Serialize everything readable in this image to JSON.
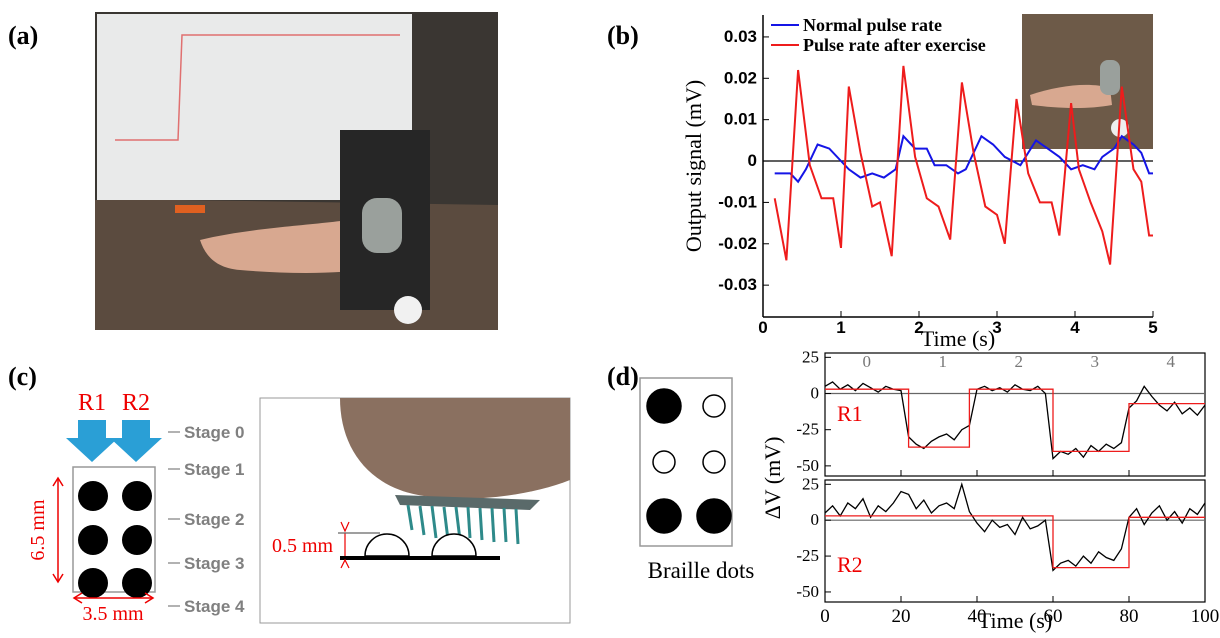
{
  "panels": {
    "a": "(a)",
    "b": "(b)",
    "c": "(c)",
    "d": "(d)"
  },
  "diagram_c": {
    "arrows": [
      "R1",
      "R2"
    ],
    "stages": [
      "Stage 0",
      "Stage 1",
      "Stage 2",
      "Stage 3",
      "Stage 4"
    ],
    "height": "6.5 mm",
    "width": "3.5 mm",
    "dot_height": "0.5 mm"
  },
  "braille": {
    "label": "Braille dots"
  },
  "chart_data": [
    {
      "type": "line",
      "ylabel": "Output signal (mV)",
      "xlabel": "Time (s)",
      "xlim": [
        0,
        5
      ],
      "ylim": [
        -0.0377,
        0.0353
      ],
      "xticks": [
        0,
        1,
        2,
        3,
        4,
        5
      ],
      "yticks": [
        -0.03,
        -0.02,
        -0.01,
        0,
        0.01,
        0.02,
        0.03
      ],
      "legend": "top-left",
      "series": [
        {
          "name": "Normal pulse rate",
          "color": "#1515e6",
          "x": [
            0.15,
            0.35,
            0.45,
            0.55,
            0.7,
            0.85,
            1.0,
            1.1,
            1.25,
            1.4,
            1.55,
            1.7,
            1.8,
            1.95,
            2.1,
            2.2,
            2.35,
            2.5,
            2.6,
            2.8,
            2.95,
            3.1,
            3.3,
            3.5,
            3.65,
            3.8,
            3.95,
            4.1,
            4.25,
            4.35,
            4.5,
            4.6,
            4.75,
            4.85,
            4.95,
            5.0
          ],
          "values": [
            -0.003,
            -0.003,
            -0.005,
            -0.002,
            0.004,
            0.003,
            0,
            -0.002,
            -0.004,
            -0.003,
            -0.004,
            -0.002,
            0.006,
            0.003,
            0.003,
            -0.001,
            -0.001,
            -0.003,
            -0.002,
            0.006,
            0.004,
            0.001,
            -0.001,
            0.005,
            0.003,
            0.001,
            -0.002,
            -0.001,
            -0.002,
            0.001,
            0.003,
            0.006,
            0.004,
            0.002,
            -0.003,
            -0.003
          ]
        },
        {
          "name": "Pulse rate after exercise",
          "color": "#ee1c1c",
          "x": [
            0.15,
            0.3,
            0.45,
            0.6,
            0.75,
            0.9,
            1.0,
            1.1,
            1.25,
            1.4,
            1.5,
            1.65,
            1.8,
            1.95,
            2.1,
            2.25,
            2.4,
            2.55,
            2.7,
            2.85,
            3.0,
            3.1,
            3.25,
            3.4,
            3.55,
            3.7,
            3.8,
            3.95,
            4.05,
            4.2,
            4.35,
            4.45,
            4.6,
            4.75,
            4.85,
            4.95,
            5.0
          ],
          "values": [
            -0.009,
            -0.024,
            0.022,
            -0.001,
            -0.009,
            -0.009,
            -0.021,
            0.018,
            0.002,
            -0.011,
            -0.01,
            -0.023,
            0.023,
            0.001,
            -0.009,
            -0.011,
            -0.019,
            0.019,
            0.002,
            -0.011,
            -0.013,
            -0.02,
            0.015,
            -0.003,
            -0.01,
            -0.01,
            -0.018,
            0.014,
            -0.002,
            -0.01,
            -0.017,
            -0.025,
            0.018,
            -0.002,
            -0.005,
            -0.018,
            -0.018
          ]
        }
      ]
    },
    {
      "type": "line",
      "label": "R1",
      "ylabel": "ΔV (mV)",
      "stage_labels": [
        "0",
        "1",
        "2",
        "3",
        "4"
      ],
      "xlim": [
        0,
        100
      ],
      "ylim": [
        -57,
        28
      ],
      "xticks": [
        0,
        20,
        40,
        60,
        80,
        100
      ],
      "yticks": [
        25,
        0,
        -25,
        -50
      ],
      "series": [
        {
          "color": "#000000",
          "x": [
            0,
            2,
            4,
            6,
            8,
            10,
            12,
            14,
            16,
            18,
            20,
            22,
            24,
            26,
            28,
            30,
            32,
            34,
            36,
            38,
            40,
            42,
            44,
            46,
            48,
            50,
            52,
            54,
            56,
            58,
            60,
            62,
            64,
            66,
            68,
            70,
            72,
            74,
            76,
            78,
            80,
            82,
            84,
            86,
            88,
            90,
            92,
            94,
            96,
            98,
            100
          ],
          "values": [
            5,
            8,
            3,
            6,
            2,
            7,
            4,
            1,
            5,
            3,
            2,
            -30,
            -35,
            -38,
            -33,
            -30,
            -28,
            -32,
            -25,
            -22,
            3,
            5,
            2,
            4,
            1,
            6,
            3,
            2,
            5,
            0,
            -45,
            -40,
            -42,
            -38,
            -44,
            -36,
            -40,
            -35,
            -38,
            -34,
            -10,
            -5,
            5,
            -2,
            -8,
            -12,
            -6,
            -14,
            -10,
            -15,
            -8
          ]
        },
        {
          "color": "#ee1c1c",
          "x": [
            0,
            22,
            22,
            38,
            38,
            60,
            60,
            80,
            80,
            100
          ],
          "values": [
            3,
            3,
            -37,
            -37,
            3,
            3,
            -40,
            -40,
            -7,
            -7
          ]
        }
      ]
    },
    {
      "type": "line",
      "label": "R2",
      "xlabel": "Time (s)",
      "xlim": [
        0,
        100
      ],
      "ylim": [
        -57,
        28
      ],
      "xticks": [
        0,
        20,
        40,
        60,
        80,
        100
      ],
      "yticks": [
        25,
        0,
        -25,
        -50
      ],
      "series": [
        {
          "color": "#000000",
          "x": [
            0,
            2,
            4,
            6,
            8,
            10,
            12,
            14,
            16,
            18,
            20,
            22,
            24,
            26,
            28,
            30,
            32,
            34,
            36,
            38,
            40,
            42,
            44,
            46,
            48,
            50,
            52,
            54,
            56,
            58,
            60,
            62,
            64,
            66,
            68,
            70,
            72,
            74,
            76,
            78,
            80,
            82,
            84,
            86,
            88,
            90,
            92,
            94,
            96,
            98,
            100
          ],
          "values": [
            5,
            10,
            3,
            12,
            8,
            15,
            2,
            10,
            6,
            12,
            20,
            18,
            8,
            14,
            5,
            10,
            12,
            8,
            25,
            6,
            -2,
            -8,
            0,
            -5,
            -3,
            -10,
            2,
            -6,
            -4,
            0,
            -35,
            -30,
            -28,
            -32,
            -25,
            -30,
            -22,
            -26,
            -28,
            -20,
            2,
            8,
            -3,
            5,
            10,
            0,
            6,
            -2,
            8,
            4,
            12
          ]
        },
        {
          "color": "#ee1c1c",
          "x": [
            0,
            60,
            60,
            80,
            80,
            100
          ],
          "values": [
            3,
            3,
            -33,
            -33,
            2,
            2
          ]
        }
      ]
    }
  ]
}
